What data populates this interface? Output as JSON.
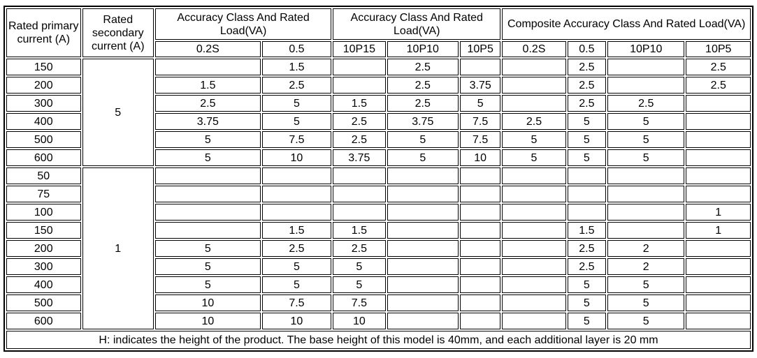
{
  "colors": {
    "background": "#ffffff",
    "border": "#000000",
    "text": "#000000"
  },
  "table": {
    "header": {
      "primary": "Rated primary current (A)",
      "secondary": "Rated secondary current (A)",
      "groups": [
        {
          "label": "Accuracy Class And Rated Load(VA)",
          "span": 2
        },
        {
          "label": "Accuracy Class And Rated Load(VA)",
          "span": 3
        },
        {
          "label": "Composite Accuracy Class And Rated Load(VA)",
          "span": 4
        }
      ],
      "subcols": [
        "0.2S",
        "0.5",
        "10P15",
        "10P10",
        "10P5",
        "0.2S",
        "0.5",
        "10P10",
        "10P5"
      ]
    },
    "sections": [
      {
        "secondary_current": "5",
        "rows": [
          {
            "primary": "150",
            "values": [
              "",
              "1.5",
              "",
              "2.5",
              "",
              "",
              "2.5",
              "",
              "2.5"
            ]
          },
          {
            "primary": "200",
            "values": [
              "1.5",
              "2.5",
              "",
              "2.5",
              "3.75",
              "",
              "2.5",
              "",
              "2.5"
            ]
          },
          {
            "primary": "300",
            "values": [
              "2.5",
              "5",
              "1.5",
              "2.5",
              "5",
              "",
              "2.5",
              "2.5",
              ""
            ]
          },
          {
            "primary": "400",
            "values": [
              "3.75",
              "5",
              "2.5",
              "3.75",
              "7.5",
              "2.5",
              "5",
              "5",
              ""
            ]
          },
          {
            "primary": "500",
            "values": [
              "5",
              "7.5",
              "2.5",
              "5",
              "7.5",
              "5",
              "5",
              "5",
              ""
            ]
          },
          {
            "primary": "600",
            "values": [
              "5",
              "10",
              "3.75",
              "5",
              "10",
              "5",
              "5",
              "5",
              ""
            ]
          }
        ]
      },
      {
        "secondary_current": "1",
        "rows": [
          {
            "primary": "50",
            "values": [
              "",
              "",
              "",
              "",
              "",
              "",
              "",
              "",
              ""
            ]
          },
          {
            "primary": "75",
            "values": [
              "",
              "",
              "",
              "",
              "",
              "",
              "",
              "",
              ""
            ]
          },
          {
            "primary": "100",
            "values": [
              "",
              "",
              "",
              "",
              "",
              "",
              "",
              "",
              "1"
            ]
          },
          {
            "primary": "150",
            "values": [
              "",
              "1.5",
              "1.5",
              "",
              "",
              "",
              "1.5",
              "",
              "1"
            ]
          },
          {
            "primary": "200",
            "values": [
              "5",
              "2.5",
              "2.5",
              "",
              "",
              "",
              "2.5",
              "2",
              ""
            ]
          },
          {
            "primary": "300",
            "values": [
              "5",
              "5",
              "5",
              "",
              "",
              "",
              "2.5",
              "2",
              ""
            ]
          },
          {
            "primary": "400",
            "values": [
              "5",
              "5",
              "5",
              "",
              "",
              "",
              "5",
              "5",
              ""
            ]
          },
          {
            "primary": "500",
            "values": [
              "10",
              "7.5",
              "7.5",
              "",
              "",
              "",
              "5",
              "5",
              ""
            ]
          },
          {
            "primary": "600",
            "values": [
              "10",
              "10",
              "10",
              "",
              "",
              "",
              "5",
              "5",
              ""
            ]
          }
        ]
      }
    ],
    "footnote": "H: indicates the height of the product. The base height of this model is 40mm, and each additional layer is 20 mm"
  }
}
